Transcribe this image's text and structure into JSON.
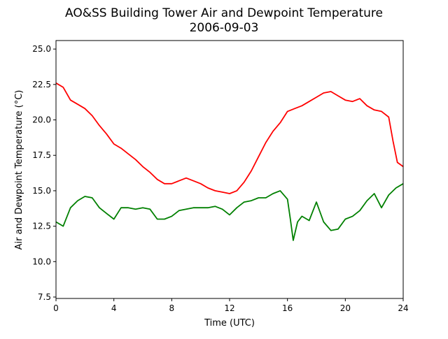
{
  "chart_data": {
    "type": "line",
    "title": "AO&SS Building Tower Air and Dewpoint Temperature",
    "subtitle": "2006-09-03",
    "xlabel": "Time (UTC)",
    "ylabel": "Air and Dewpoint Temperature (°C)",
    "xlim": [
      0,
      24
    ],
    "ylim": [
      7.4,
      25.6
    ],
    "xticks": [
      "0",
      "4",
      "8",
      "12",
      "16",
      "20",
      "24"
    ],
    "yticks": [
      "7.5",
      "10.0",
      "12.5",
      "15.0",
      "17.5",
      "20.0",
      "22.5",
      "25.0"
    ],
    "grid": false,
    "legend": "none",
    "series": [
      {
        "color": "#ff0000",
        "x": [
          0,
          0.5,
          1,
          1.5,
          2,
          2.5,
          3,
          3.5,
          4,
          4.5,
          5,
          5.5,
          6,
          6.5,
          7,
          7.5,
          8,
          8.5,
          9,
          9.5,
          10,
          10.5,
          11,
          11.5,
          12,
          12.5,
          13,
          13.5,
          14,
          14.5,
          15,
          15.5,
          16,
          16.5,
          17,
          17.5,
          18,
          18.5,
          19,
          19.5,
          20,
          20.5,
          21,
          21.5,
          22,
          22.5,
          23,
          23.3,
          23.6,
          24
        ],
        "y": [
          22.6,
          22.3,
          21.4,
          21.1,
          20.8,
          20.3,
          19.6,
          19.0,
          18.3,
          18.0,
          17.6,
          17.2,
          16.7,
          16.3,
          15.8,
          15.5,
          15.5,
          15.7,
          15.9,
          15.7,
          15.5,
          15.2,
          15.0,
          14.9,
          14.8,
          15.0,
          15.6,
          16.4,
          17.4,
          18.4,
          19.2,
          19.8,
          20.6,
          20.8,
          21.0,
          21.3,
          21.6,
          21.9,
          22.0,
          21.7,
          21.4,
          21.3,
          21.5,
          21.0,
          20.7,
          20.6,
          20.2,
          18.5,
          17.0,
          16.7
        ]
      },
      {
        "color": "#008000",
        "x": [
          0,
          0.5,
          1,
          1.5,
          2,
          2.5,
          3,
          3.5,
          4,
          4.5,
          5,
          5.5,
          6,
          6.5,
          7,
          7.5,
          8,
          8.5,
          9,
          9.5,
          10,
          10.5,
          11,
          11.5,
          12,
          12.5,
          13,
          13.5,
          14,
          14.5,
          15,
          15.5,
          16,
          16.2,
          16.4,
          16.7,
          17,
          17.5,
          18,
          18.5,
          19,
          19.5,
          20,
          20.5,
          21,
          21.5,
          22,
          22.5,
          23,
          23.5,
          24
        ],
        "y": [
          12.8,
          12.5,
          13.8,
          14.3,
          14.6,
          14.5,
          13.8,
          13.4,
          13.0,
          13.8,
          13.8,
          13.7,
          13.8,
          13.7,
          13.0,
          13.0,
          13.2,
          13.6,
          13.7,
          13.8,
          13.8,
          13.8,
          13.9,
          13.7,
          13.3,
          13.8,
          14.2,
          14.3,
          14.5,
          14.5,
          14.8,
          15.0,
          14.4,
          13.0,
          11.5,
          12.8,
          13.2,
          12.9,
          14.2,
          12.8,
          12.2,
          12.3,
          13.0,
          13.2,
          13.6,
          14.3,
          14.8,
          13.8,
          14.7,
          15.2,
          15.5
        ]
      }
    ]
  }
}
